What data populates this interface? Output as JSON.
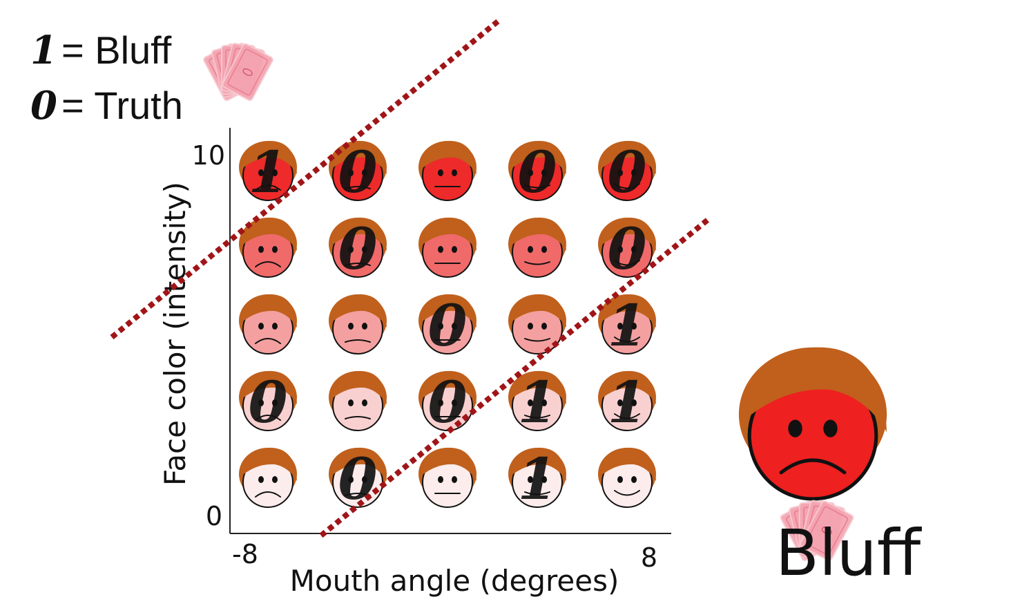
{
  "legend": {
    "bluff": {
      "digit": "1",
      "label": "= Bluff"
    },
    "truth": {
      "digit": "0",
      "label": "= Truth"
    }
  },
  "axes": {
    "x_label": "Mouth angle (degrees)",
    "y_label": "Face color (intensity)",
    "x_min_label": "-8",
    "x_max_label": "8",
    "y_min_label": "0",
    "y_max_label": "10"
  },
  "grid": {
    "columns": 5,
    "rows": 5,
    "row_colors": [
      "#ee2a2a",
      "#f06a6a",
      "#f4a0a0",
      "#f9d0d0",
      "#fcecec"
    ],
    "hair_color": "#c0601c",
    "mouths": [
      "frown",
      "flat-frown",
      "flat",
      "slight-smile",
      "smile"
    ],
    "labels": [
      [
        "1",
        "0",
        "",
        "0",
        "0"
      ],
      [
        "",
        "0",
        "",
        "",
        "0"
      ],
      [
        "",
        "",
        "0",
        "",
        "1"
      ],
      [
        "0",
        "",
        "0",
        "1",
        "1"
      ],
      [
        "",
        "0",
        "",
        "1",
        ""
      ]
    ]
  },
  "boundary_color": "#a01518",
  "example": {
    "label": "Bluff",
    "face_color": "#ee2020",
    "mouth": "frown"
  },
  "icons": [
    "playing-cards-icon"
  ]
}
